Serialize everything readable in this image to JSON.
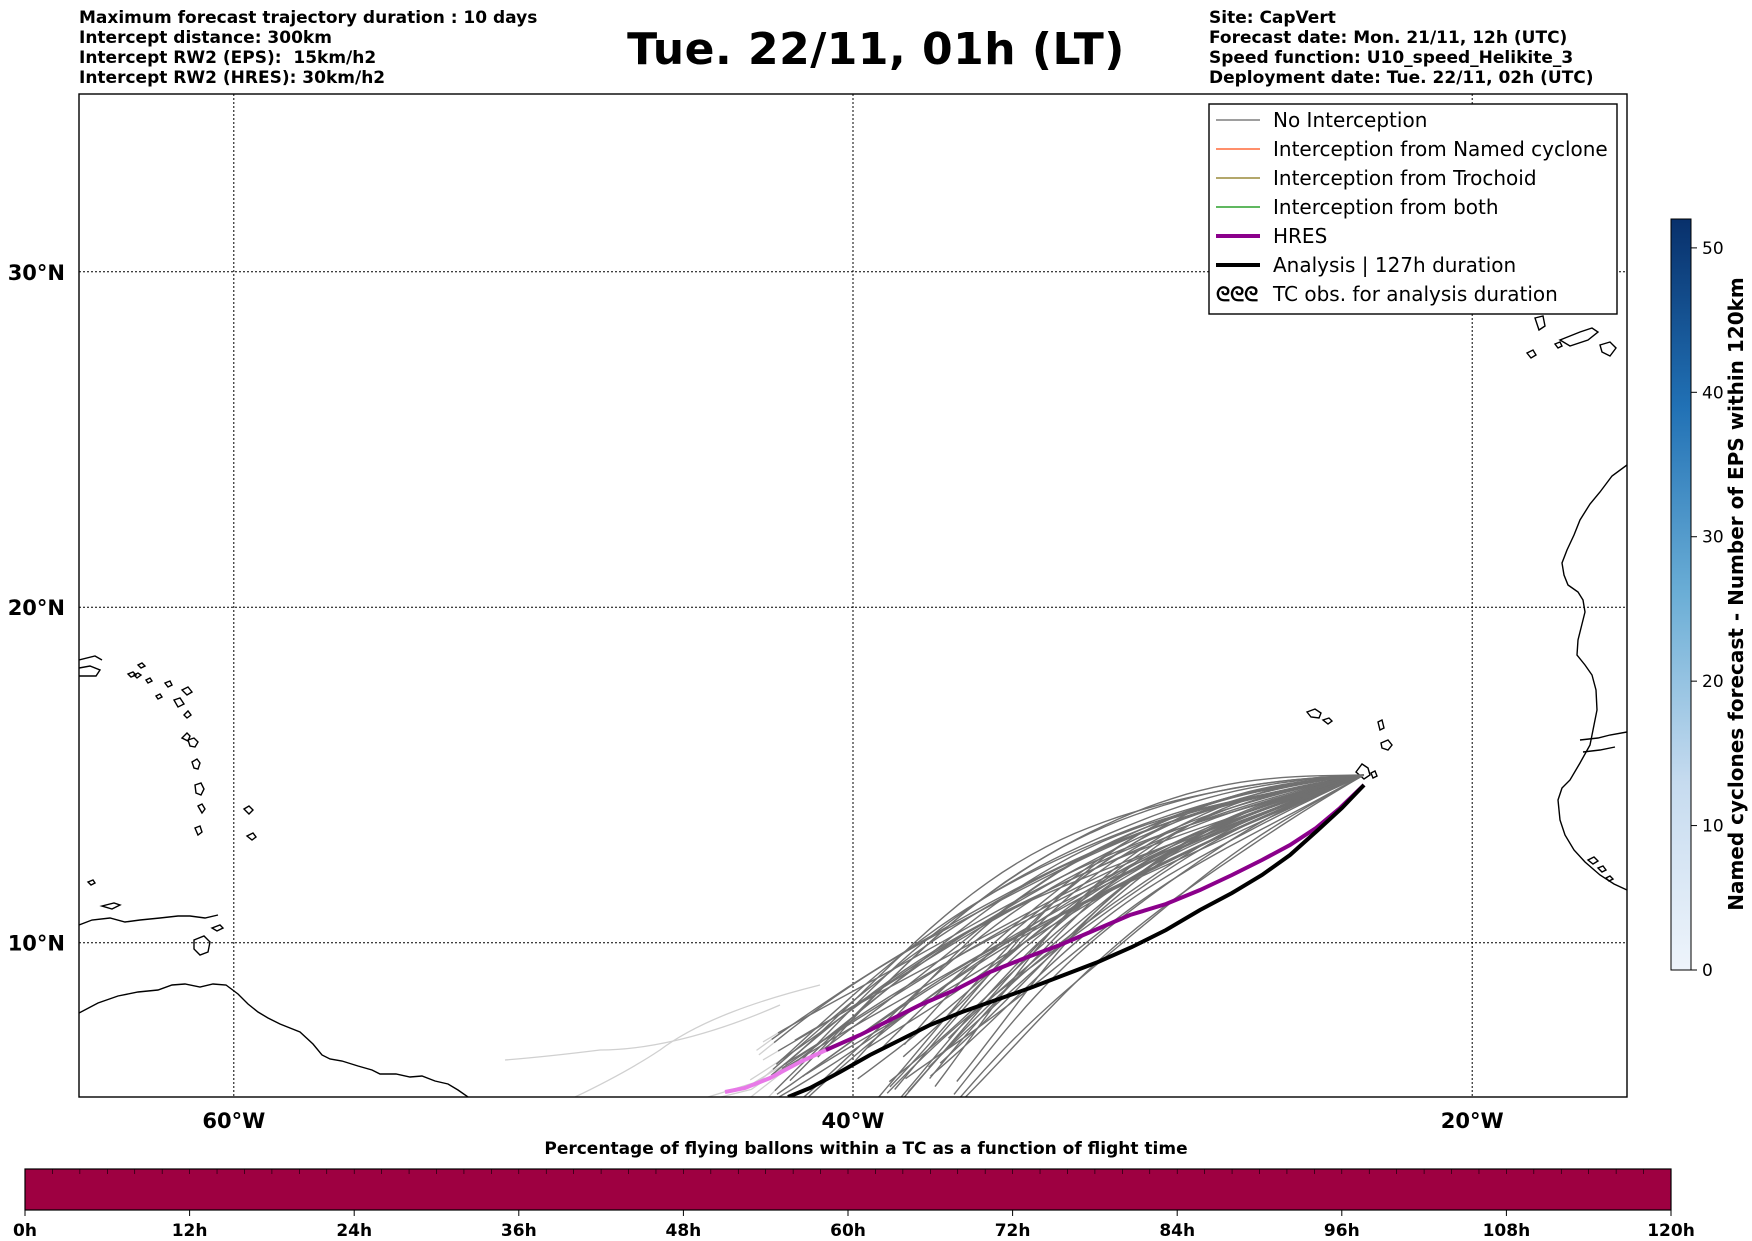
{
  "header_left": {
    "line1": "Maximum forecast trajectory duration : 10 days",
    "line2": "Intercept distance: 300km",
    "line3": "Intercept RW2 (EPS):  15km/h2",
    "line4": "Intercept RW2 (HRES): 30km/h2"
  },
  "title": "Tue. 22/11, 01h (LT)",
  "header_right": {
    "line1": "Site: CapVert",
    "line2": "Forecast date: Mon. 21/11, 12h (UTC)",
    "line3": "Speed function: U10_speed_Helikite_3",
    "line4": "Deployment date: Tue. 22/11, 02h (UTC)"
  },
  "map": {
    "lat_labels": [
      "30°N",
      "20°N",
      "10°N"
    ],
    "lat_values": [
      30,
      20,
      10
    ],
    "lon_labels": [
      "60°W",
      "40°W",
      "20°W"
    ],
    "lon_values": [
      -60,
      -40,
      -20
    ],
    "extent": {
      "lon_min": -65,
      "lon_max": -15,
      "lat_min": 5.4,
      "lat_max": 35.3
    },
    "site": {
      "lon": -23.5,
      "lat": 15.0
    }
  },
  "legend": {
    "items": [
      {
        "label": "No Interception",
        "color": "#7f7f7f",
        "width": 1.5
      },
      {
        "label": "Interception from Named cyclone",
        "color": "#ff6a3a",
        "width": 1.5
      },
      {
        "label": "Interception from Trochoid",
        "color": "#9a8a3a",
        "width": 1.5
      },
      {
        "label": "Interception from both",
        "color": "#2ca02c",
        "width": 1.5
      },
      {
        "label": "HRES",
        "color": "#8b008b",
        "width": 4
      },
      {
        "label": "Analysis | 127h duration",
        "color": "#000000",
        "width": 4
      },
      {
        "label": "TC obs. for analysis duration",
        "color": "#000000",
        "symbol": "ᘓᘓᘓ"
      }
    ]
  },
  "right_colorbar": {
    "title": "Named cyclones forecast - Number of EPS within 120km",
    "ticks": [
      "0",
      "10",
      "20",
      "30",
      "40",
      "50"
    ],
    "tick_values": [
      0,
      10,
      20,
      30,
      40,
      50
    ],
    "max": 52,
    "color_low": "#e8f0fa",
    "color_high": "#0b3a78"
  },
  "bottom_colorbar": {
    "title": "Percentage of flying ballons within a TC as a function of flight time",
    "ticks": [
      "0h",
      "12h",
      "24h",
      "36h",
      "48h",
      "60h",
      "72h",
      "84h",
      "96h",
      "108h",
      "120h"
    ],
    "fill_color": "#9e0041"
  }
}
